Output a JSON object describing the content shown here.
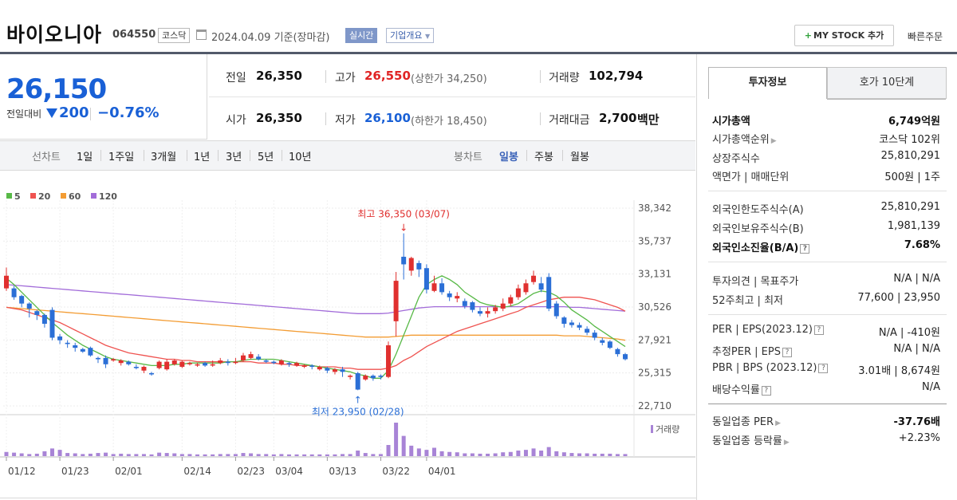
{
  "header": {
    "name": "바이오니아",
    "code": "064550",
    "market": "코스닥",
    "date": "2024.04.09 기준(장마감)",
    "realtime": "실시간",
    "corp_info": "기업개요",
    "mystock": "MY STOCK 추가",
    "quick_order": "빠른주문"
  },
  "price": {
    "current": "26,150",
    "change_label": "전일대비",
    "change": "200",
    "change_pct": "−0.76%"
  },
  "quote": {
    "prev_label": "전일",
    "prev": "26,350",
    "high_label": "고가",
    "high": "26,550",
    "upper_limit": "(상한가 34,250)",
    "volume_label": "거래량",
    "volume": "102,794",
    "open_label": "시가",
    "open": "26,350",
    "low_label": "저가",
    "low": "26,100",
    "lower_limit": "(하한가 18,450)",
    "amount_label": "거래대금",
    "amount": "2,700",
    "amount_unit": "백만"
  },
  "chart_tabs": {
    "line_label": "선차트",
    "periods": [
      "1일",
      "1주일",
      "3개월",
      "1년",
      "3년",
      "5년",
      "10년"
    ],
    "candle_label": "봉차트",
    "candles": [
      "일봉",
      "주봉",
      "월봉"
    ],
    "selected_candle": "일봉"
  },
  "chart_data": {
    "type": "candlestick",
    "legend": [
      "5",
      "20",
      "60",
      "120"
    ],
    "ma_colors": {
      "5": "#58b947",
      "20": "#ef5350",
      "60": "#f39c33",
      "120": "#a26cd9"
    },
    "y_ticks": [
      "38,342",
      "35,737",
      "33,131",
      "30,526",
      "27,921",
      "25,315",
      "22,710"
    ],
    "ylim": [
      22710,
      38342
    ],
    "x_labels": [
      "01/12",
      "01/23",
      "02/01",
      "02/14",
      "02/23",
      "03/04",
      "03/13",
      "03/22",
      "04/01"
    ],
    "x_label_index": [
      0,
      7,
      14,
      23,
      30,
      35,
      42,
      49,
      55
    ],
    "high_annotation": "최고 36,350 (03/07)",
    "low_annotation": "최저 23,950 (02/28)",
    "volume_label": "거래량",
    "candles": [
      [
        32000,
        33000,
        33650,
        31800
      ],
      [
        32000,
        31300,
        32200,
        31100
      ],
      [
        31400,
        30800,
        31500,
        30500
      ],
      [
        30800,
        30400,
        30900,
        29700
      ],
      [
        30200,
        29900,
        30300,
        29500
      ],
      [
        29900,
        29200,
        30000,
        28900
      ],
      [
        30300,
        28100,
        30500,
        27900
      ],
      [
        28200,
        27900,
        28400,
        27600
      ],
      [
        27700,
        27600,
        27900,
        27300
      ],
      [
        27500,
        27300,
        27700,
        27000
      ],
      [
        27200,
        27000,
        27300,
        26900
      ],
      [
        27300,
        26700,
        27400,
        26600
      ],
      [
        26500,
        26400,
        26600,
        26100
      ],
      [
        26500,
        26000,
        26700,
        25700
      ],
      [
        26300,
        26400,
        26500,
        26200
      ],
      [
        26100,
        26300,
        26400,
        25900
      ],
      [
        26200,
        26000,
        26300,
        25900
      ],
      [
        25800,
        25700,
        26000,
        25600
      ],
      [
        25500,
        25800,
        25900,
        25300
      ],
      [
        25300,
        25200,
        25400,
        25100
      ],
      [
        25700,
        26200,
        26300,
        25600
      ],
      [
        25600,
        26200,
        26400,
        25500
      ],
      [
        26000,
        26300,
        26400,
        25900
      ],
      [
        25800,
        26200,
        26300,
        25700
      ],
      [
        26000,
        26100,
        26200,
        25900
      ],
      [
        25900,
        26000,
        26100,
        25800
      ],
      [
        26100,
        25900,
        26200,
        25800
      ],
      [
        25900,
        26000,
        26300,
        25800
      ],
      [
        26100,
        26300,
        26500,
        26000
      ],
      [
        26200,
        26100,
        26400,
        25900
      ],
      [
        26100,
        26200,
        26500,
        26000
      ],
      [
        26300,
        26700,
        26900,
        26200
      ],
      [
        26500,
        26800,
        27000,
        26400
      ],
      [
        26600,
        26400,
        26800,
        26300
      ],
      [
        26300,
        26200,
        26400,
        26100
      ],
      [
        26200,
        26100,
        26300,
        26000
      ],
      [
        26000,
        26300,
        26400,
        25900
      ],
      [
        26100,
        26000,
        26200,
        25800
      ],
      [
        25900,
        26100,
        26200,
        25800
      ],
      [
        25800,
        25900,
        26000,
        25700
      ],
      [
        25900,
        25800,
        26000,
        25600
      ],
      [
        25600,
        25800,
        25900,
        25500
      ],
      [
        25700,
        25500,
        25800,
        25300
      ],
      [
        25400,
        25600,
        25700,
        25200
      ],
      [
        25600,
        25400,
        25800,
        25000
      ],
      [
        25000,
        25100,
        25200,
        24800
      ],
      [
        25300,
        24000,
        25400,
        23950
      ],
      [
        24800,
        25100,
        25200,
        24700
      ],
      [
        25100,
        24900,
        25200,
        24700
      ],
      [
        25100,
        25000,
        25200,
        24800
      ],
      [
        25000,
        27500,
        27800,
        24900
      ],
      [
        29400,
        32600,
        33300,
        28200
      ],
      [
        34500,
        33900,
        36350,
        32700
      ],
      [
        33400,
        34400,
        34500,
        33000
      ],
      [
        34000,
        33500,
        34200,
        32900
      ],
      [
        33600,
        31900,
        33900,
        31600
      ],
      [
        31800,
        32400,
        33000,
        31700
      ],
      [
        32400,
        31700,
        32800,
        31500
      ],
      [
        31600,
        31300,
        31800,
        31000
      ],
      [
        31200,
        31400,
        31700,
        30900
      ],
      [
        31000,
        30600,
        31200,
        30400
      ],
      [
        30900,
        30300,
        31000,
        30100
      ],
      [
        30200,
        30000,
        30500,
        29800
      ],
      [
        30000,
        30200,
        30500,
        29700
      ],
      [
        30200,
        30500,
        30700,
        30000
      ],
      [
        30400,
        30800,
        31200,
        30200
      ],
      [
        30800,
        31300,
        31500,
        30600
      ],
      [
        31300,
        32000,
        32300,
        31100
      ],
      [
        31700,
        32400,
        32700,
        31500
      ],
      [
        32500,
        33000,
        33400,
        32300
      ],
      [
        32400,
        31900,
        32900,
        31700
      ],
      [
        32900,
        30400,
        33200,
        30200
      ],
      [
        30800,
        29800,
        31000,
        29600
      ],
      [
        29700,
        29200,
        29800,
        28900
      ],
      [
        29300,
        29100,
        29500,
        28900
      ],
      [
        29100,
        28900,
        29300,
        28700
      ],
      [
        28800,
        28500,
        29000,
        28300
      ],
      [
        28500,
        28100,
        28700,
        27900
      ],
      [
        27900,
        27700,
        28100,
        27500
      ],
      [
        27800,
        27300,
        27900,
        27200
      ],
      [
        27200,
        26800,
        27300,
        26600
      ],
      [
        26800,
        26400,
        26900,
        26300
      ]
    ],
    "ma5": [
      32800,
      32300,
      31700,
      31100,
      30500,
      29900,
      29300,
      28800,
      28300,
      27900,
      27500,
      27200,
      26900,
      26600,
      26400,
      26300,
      26200,
      26100,
      26000,
      25900,
      25900,
      25900,
      26000,
      26000,
      26100,
      26100,
      26100,
      26100,
      26100,
      26200,
      26200,
      26300,
      26400,
      26400,
      26400,
      26400,
      26300,
      26200,
      26100,
      26000,
      25900,
      25800,
      25700,
      25600,
      25500,
      25400,
      25200,
      25100,
      24900,
      24900,
      25500,
      26800,
      28300,
      29800,
      31300,
      32300,
      32700,
      33000,
      32700,
      32300,
      31700,
      31300,
      30900,
      30700,
      30600,
      30500,
      30600,
      30800,
      31200,
      31600,
      31800,
      31700,
      31400,
      30900,
      30300,
      29900,
      29500,
      29000,
      28600,
      28200,
      27800,
      27400
    ],
    "ma20": [
      30500,
      30400,
      30300,
      30100,
      29900,
      29700,
      29500,
      29300,
      29000,
      28700,
      28400,
      28100,
      27800,
      27500,
      27300,
      27100,
      26900,
      26800,
      26700,
      26600,
      26500,
      26400,
      26400,
      26300,
      26300,
      26200,
      26200,
      26200,
      26200,
      26200,
      26200,
      26200,
      26200,
      26100,
      26100,
      26100,
      26000,
      26000,
      25900,
      25900,
      25900,
      25800,
      25800,
      25800,
      25700,
      25700,
      25600,
      25600,
      25600,
      25600,
      25700,
      25900,
      26300,
      26600,
      27000,
      27400,
      27700,
      28000,
      28300,
      28600,
      28800,
      29000,
      29200,
      29400,
      29600,
      29800,
      30000,
      30200,
      30500,
      30700,
      30900,
      31100,
      31200,
      31300,
      31300,
      31300,
      31200,
      31100,
      30900,
      30700,
      30500,
      30200
    ],
    "ma60": [
      30500,
      30450,
      30400,
      30350,
      30300,
      30250,
      30200,
      30150,
      30100,
      30050,
      30000,
      29950,
      29900,
      29850,
      29800,
      29750,
      29700,
      29650,
      29600,
      29550,
      29500,
      29450,
      29400,
      29350,
      29300,
      29250,
      29200,
      29150,
      29100,
      29050,
      29000,
      28950,
      28900,
      28850,
      28800,
      28750,
      28700,
      28650,
      28600,
      28550,
      28500,
      28450,
      28400,
      28350,
      28300,
      28250,
      28200,
      28150,
      28150,
      28150,
      28150,
      28200,
      28250,
      28300,
      28300,
      28300,
      28300,
      28300,
      28300,
      28300,
      28300,
      28300,
      28300,
      28300,
      28300,
      28300,
      28300,
      28300,
      28300,
      28300,
      28300,
      28300,
      28300,
      28250,
      28250,
      28250,
      28200,
      28150,
      28100,
      28050,
      28000,
      27900
    ],
    "ma120": [
      32300,
      32250,
      32200,
      32150,
      32100,
      32050,
      32000,
      31950,
      31900,
      31850,
      31800,
      31750,
      31700,
      31650,
      31600,
      31550,
      31500,
      31450,
      31400,
      31350,
      31300,
      31250,
      31200,
      31150,
      31100,
      31050,
      31000,
      30950,
      30900,
      30850,
      30800,
      30750,
      30700,
      30650,
      30600,
      30550,
      30500,
      30450,
      30400,
      30350,
      30300,
      30250,
      30200,
      30150,
      30100,
      30050,
      30000,
      30000,
      30000,
      30000,
      30050,
      30150,
      30250,
      30350,
      30450,
      30500,
      30550,
      30550,
      30550,
      30550,
      30550,
      30550,
      30550,
      30550,
      30550,
      30550,
      30550,
      30550,
      30550,
      30550,
      30550,
      30550,
      30550,
      30550,
      30500,
      30500,
      30450,
      30400,
      30350,
      30300,
      30250,
      30200
    ],
    "volumes": [
      60,
      50,
      40,
      30,
      35,
      70,
      110,
      90,
      45,
      40,
      30,
      35,
      45,
      50,
      30,
      35,
      30,
      30,
      30,
      25,
      50,
      45,
      40,
      30,
      30,
      25,
      25,
      25,
      30,
      30,
      30,
      45,
      40,
      30,
      30,
      25,
      30,
      25,
      25,
      25,
      25,
      25,
      25,
      25,
      30,
      30,
      80,
      45,
      30,
      30,
      160,
      480,
      290,
      150,
      110,
      90,
      120,
      70,
      60,
      55,
      40,
      40,
      35,
      35,
      40,
      55,
      60,
      80,
      90,
      110,
      80,
      130,
      70,
      55,
      45,
      40,
      40,
      35,
      35,
      35,
      30,
      30
    ]
  },
  "invest": {
    "tab_info": "투자정보",
    "tab_ask": "호가 10단계",
    "rows1": [
      {
        "label": "시가총액",
        "value": "6,749억원"
      },
      {
        "label": "시가총액순위",
        "value": "코스닥 102위"
      },
      {
        "label": "상장주식수",
        "value": "25,810,291"
      },
      {
        "label": "액면가 | 매매단위",
        "value": "500원 | 1주"
      }
    ],
    "rows2": [
      {
        "label": "외국인한도주식수(A)",
        "value": "25,810,291"
      },
      {
        "label": "외국인보유주식수(B)",
        "value": "1,981,139"
      },
      {
        "label": "외국인소진율(B/A)",
        "value": "7.68%"
      }
    ],
    "rows3": [
      {
        "label": "투자의견 | 목표주가",
        "value": "N/A | N/A"
      },
      {
        "label": "52주최고 | 최저",
        "value": "77,600 | 23,950"
      }
    ],
    "rows4": [
      {
        "label": "PER | EPS(2023.12)",
        "value": "N/A | -410원"
      },
      {
        "label": "추정PER | EPS",
        "value": "N/A | N/A"
      },
      {
        "label": "PBR | BPS (2023.12)",
        "value": "3.01배 | 8,674원"
      },
      {
        "label": "배당수익률",
        "value": "N/A"
      }
    ],
    "rows5": [
      {
        "label": "동일업종 PER",
        "value": "-37.76배"
      },
      {
        "label": "동일업종 등락률",
        "value": "+2.23%"
      }
    ],
    "help": "?"
  }
}
